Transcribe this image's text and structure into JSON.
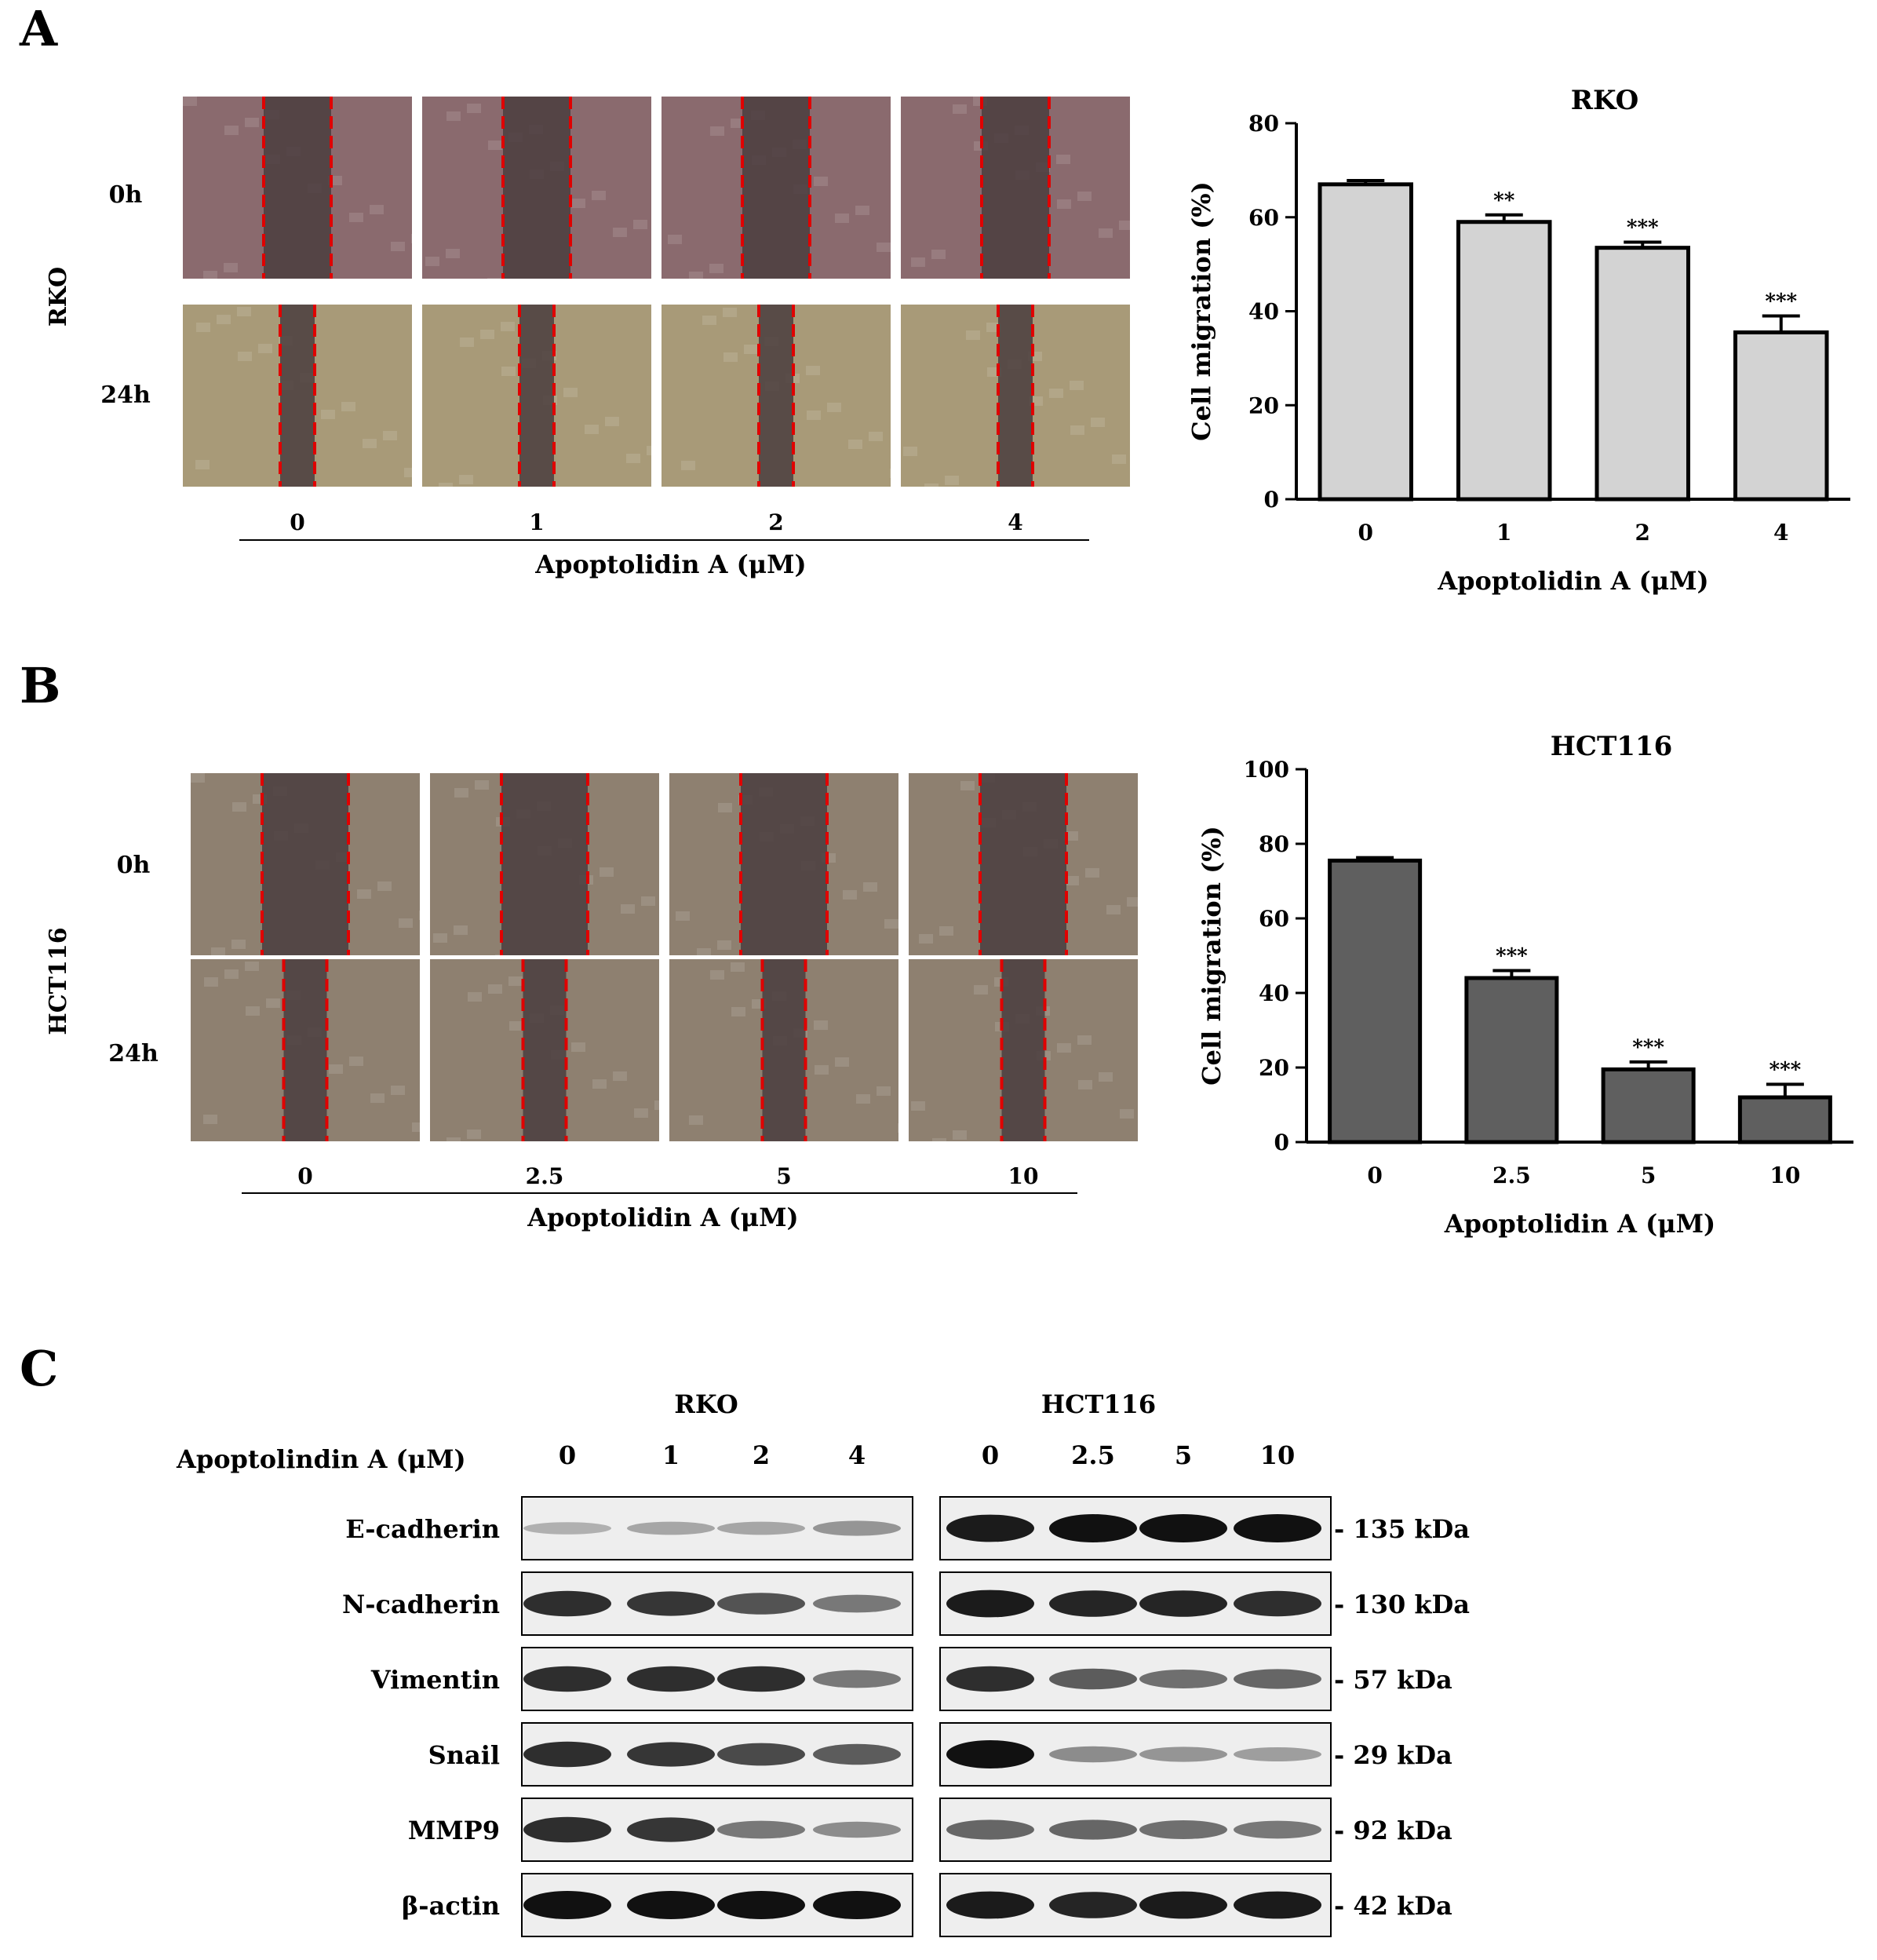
{
  "panels": {
    "a": "A",
    "b": "B",
    "c": "C"
  },
  "panel_a": {
    "cell_line": "RKO",
    "times": [
      "0h",
      "24h"
    ],
    "doses": [
      "0",
      "1",
      "2",
      "4"
    ],
    "dose_axis_label": "Apoptolidin A (μM)",
    "image_tint_0h": "#8a6a6e",
    "image_tint_24h": "#a89a78"
  },
  "panel_b": {
    "cell_line": "HCT116",
    "times": [
      "0h",
      "24h"
    ],
    "doses": [
      "0",
      "2.5",
      "5",
      "10"
    ],
    "dose_axis_label": "Apoptolidin A (μM)",
    "image_tint": "#8e8070"
  },
  "chart_data": [
    {
      "type": "bar",
      "title": "RKO",
      "categories": [
        "0",
        "1",
        "2",
        "4"
      ],
      "values": [
        67,
        59,
        53.5,
        35.5
      ],
      "errors": [
        0.8,
        1.5,
        1.2,
        3.5
      ],
      "significance": [
        "",
        "**",
        "***",
        "***"
      ],
      "xlabel": "Apoptolidin A (μM)",
      "ylabel": "Cell migration (%)",
      "ylim": [
        0,
        80
      ],
      "yticks": [
        "0",
        "20",
        "40",
        "60",
        "80"
      ],
      "bar_color": "#d3d3d3"
    },
    {
      "type": "bar",
      "title": "HCT116",
      "categories": [
        "0",
        "2.5",
        "5",
        "10"
      ],
      "values": [
        75.5,
        44,
        19.5,
        12
      ],
      "errors": [
        0.8,
        2.0,
        2.0,
        3.5
      ],
      "significance": [
        "",
        "***",
        "***",
        "***"
      ],
      "xlabel": "Apoptolidin A (μM)",
      "ylabel": "Cell migration (%)",
      "ylim": [
        0,
        100
      ],
      "yticks": [
        "0",
        "20",
        "40",
        "60",
        "80",
        "100"
      ],
      "bar_color": "#5f5f5f"
    }
  ],
  "panel_c": {
    "groups": [
      "RKO",
      "HCT116"
    ],
    "dose_label": "Apoptolindin A (μM)",
    "doses_rko": [
      "0",
      "1",
      "2",
      "4"
    ],
    "doses_hct": [
      "0",
      "2.5",
      "5",
      "10"
    ],
    "proteins": [
      {
        "name": "E-cadherin",
        "size": "- 135 kDa",
        "rko": [
          0.15,
          0.2,
          0.2,
          0.3
        ],
        "hct": [
          0.95,
          1.0,
          1.0,
          1.0
        ]
      },
      {
        "name": "N-cadherin",
        "size": "- 130 kDa",
        "rko": [
          0.85,
          0.8,
          0.65,
          0.45
        ],
        "hct": [
          0.95,
          0.9,
          0.9,
          0.85
        ]
      },
      {
        "name": "Vimentin",
        "size": "- 57 kDa",
        "rko": [
          0.85,
          0.85,
          0.85,
          0.45
        ],
        "hct": [
          0.85,
          0.6,
          0.5,
          0.55
        ]
      },
      {
        "name": "Snail",
        "size": "- 29 kDa",
        "rko": [
          0.85,
          0.8,
          0.7,
          0.6
        ],
        "hct": [
          1.0,
          0.35,
          0.3,
          0.25
        ]
      },
      {
        "name": "MMP9",
        "size": "- 92 kDa",
        "rko": [
          0.85,
          0.8,
          0.45,
          0.35
        ],
        "hct": [
          0.55,
          0.55,
          0.5,
          0.45
        ]
      },
      {
        "name": "β-actin",
        "size": "- 42 kDa",
        "rko": [
          1.0,
          1.0,
          1.0,
          1.0
        ],
        "hct": [
          0.95,
          0.9,
          0.95,
          0.95
        ]
      }
    ]
  }
}
